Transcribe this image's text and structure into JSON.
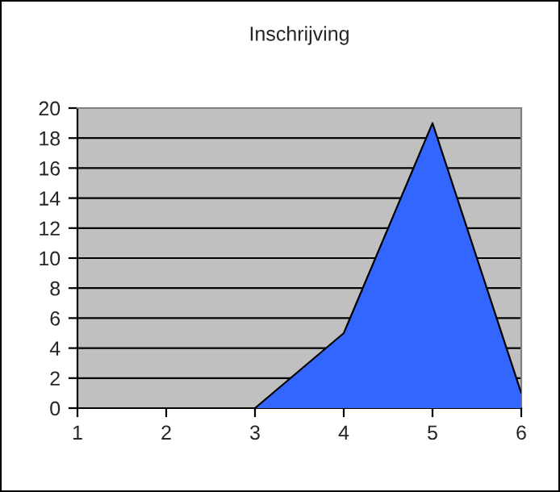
{
  "chart_data": {
    "type": "area",
    "title": "Inschrijving",
    "categories": [
      "1",
      "2",
      "3",
      "4",
      "5",
      "6"
    ],
    "series": [
      {
        "color": "#3366ff",
        "values": [
          0,
          0,
          0,
          5,
          19,
          1
        ]
      }
    ],
    "ylim": [
      0,
      20
    ],
    "yticks": [
      0,
      2,
      4,
      6,
      8,
      10,
      12,
      14,
      16,
      18,
      20
    ],
    "grid": "y",
    "legend": false
  }
}
